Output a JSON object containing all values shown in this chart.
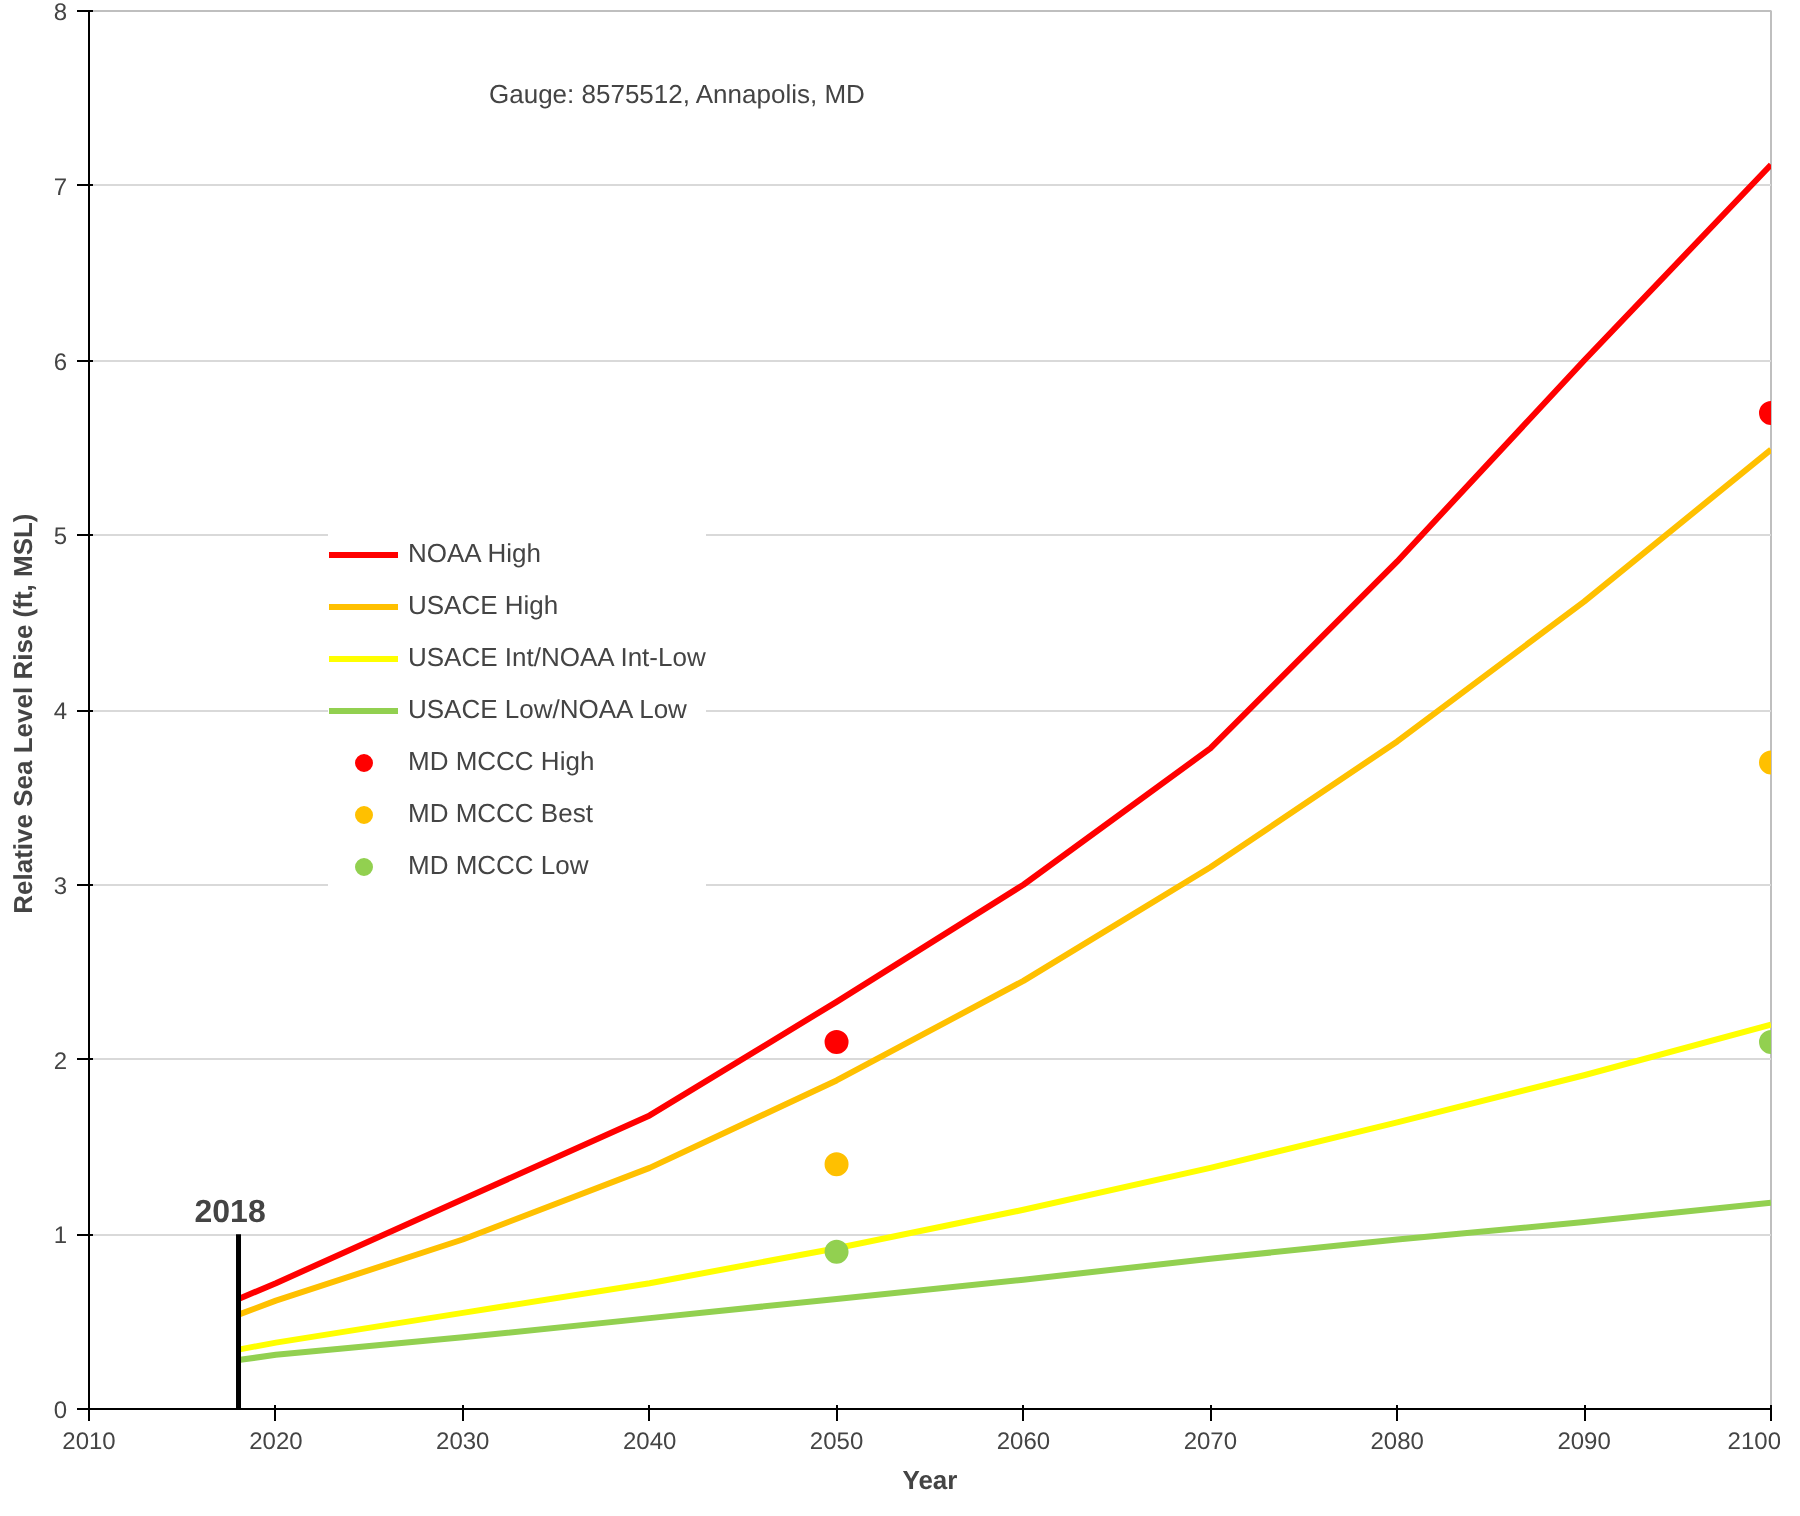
{
  "chart_data": {
    "type": "line",
    "xlabel": "Year",
    "ylabel": "Relative Sea Level Rise (ft,  MSL)",
    "annotations": [
      "Gauge:  8575512, Annapolis, MD",
      {
        "text": "2018",
        "x": 2018,
        "y": 1
      }
    ],
    "xlim": [
      2010,
      2100
    ],
    "xticks": [
      2010,
      2020,
      2030,
      2040,
      2050,
      2060,
      2070,
      2080,
      2090,
      2100
    ],
    "ylim": [
      0,
      8
    ],
    "yticks": [
      0,
      1,
      2,
      3,
      4,
      5,
      6,
      7,
      8
    ],
    "grid": "y",
    "legend": "center left",
    "series": [
      {
        "name": "NOAA High",
        "color": "#ff0000",
        "x": [
          2018,
          2020,
          2030,
          2040,
          2050,
          2060,
          2070,
          2080,
          2090,
          2100
        ],
        "values": [
          0.63,
          0.72,
          1.2,
          1.68,
          2.33,
          3.0,
          3.78,
          4.85,
          6.0,
          7.12
        ]
      },
      {
        "name": "USACE High",
        "color": "#ffc000",
        "x": [
          2018,
          2020,
          2030,
          2040,
          2050,
          2060,
          2070,
          2080,
          2090,
          2100
        ],
        "values": [
          0.54,
          0.62,
          0.97,
          1.38,
          1.88,
          2.45,
          3.1,
          3.82,
          4.62,
          5.49
        ]
      },
      {
        "name": "USACE Int/NOAA Int-Low",
        "color": "#ffff00",
        "x": [
          2018,
          2020,
          2030,
          2040,
          2050,
          2060,
          2070,
          2080,
          2090,
          2100
        ],
        "values": [
          0.34,
          0.38,
          0.55,
          0.72,
          0.92,
          1.14,
          1.38,
          1.64,
          1.91,
          2.2
        ]
      },
      {
        "name": "USACE Low/NOAA Low",
        "color": "#92d050",
        "x": [
          2018,
          2020,
          2030,
          2040,
          2050,
          2060,
          2070,
          2080,
          2090,
          2100
        ],
        "values": [
          0.28,
          0.31,
          0.41,
          0.52,
          0.63,
          0.74,
          0.86,
          0.97,
          1.07,
          1.18
        ]
      },
      {
        "name": "MD MCCC High",
        "type": "scatter",
        "color": "#ff0000",
        "x": [
          2050,
          2100
        ],
        "values": [
          2.1,
          5.7
        ]
      },
      {
        "name": "MD MCCC Best",
        "type": "scatter",
        "color": "#ffc000",
        "x": [
          2050,
          2100
        ],
        "values": [
          1.4,
          3.7
        ]
      },
      {
        "name": "MD MCCC Low",
        "type": "scatter",
        "color": "#92d050",
        "x": [
          2050,
          2100
        ],
        "values": [
          0.9,
          2.1
        ]
      },
      {
        "color": "#000000",
        "x": [
          2018,
          2018
        ],
        "values": [
          0,
          1
        ]
      }
    ]
  }
}
